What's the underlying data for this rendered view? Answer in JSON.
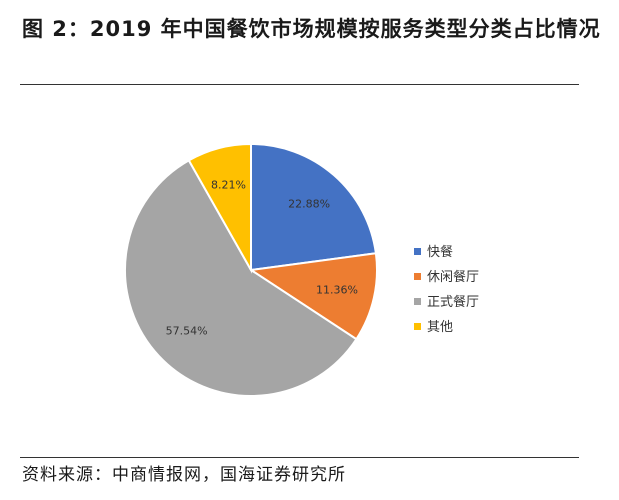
{
  "header": {
    "title": "图 2：2019 年中国餐饮市场规模按服务类型分类占比情况"
  },
  "footer": {
    "source": "资料来源：中商情报网，国海证券研究所"
  },
  "chart_data": {
    "type": "pie",
    "title": "",
    "labels": [
      "快餐",
      "休闲餐厅",
      "正式餐厅",
      "其他"
    ],
    "values": [
      22.88,
      11.36,
      57.54,
      8.21
    ],
    "data_labels": [
      "22.88%",
      "11.36%",
      "57.54%",
      "8.21%"
    ],
    "colors": [
      "#4472C4",
      "#ED7D31",
      "#A5A5A5",
      "#FFC000"
    ],
    "legend_position": "right",
    "start": "12 o'clock",
    "direction": "clockwise"
  }
}
